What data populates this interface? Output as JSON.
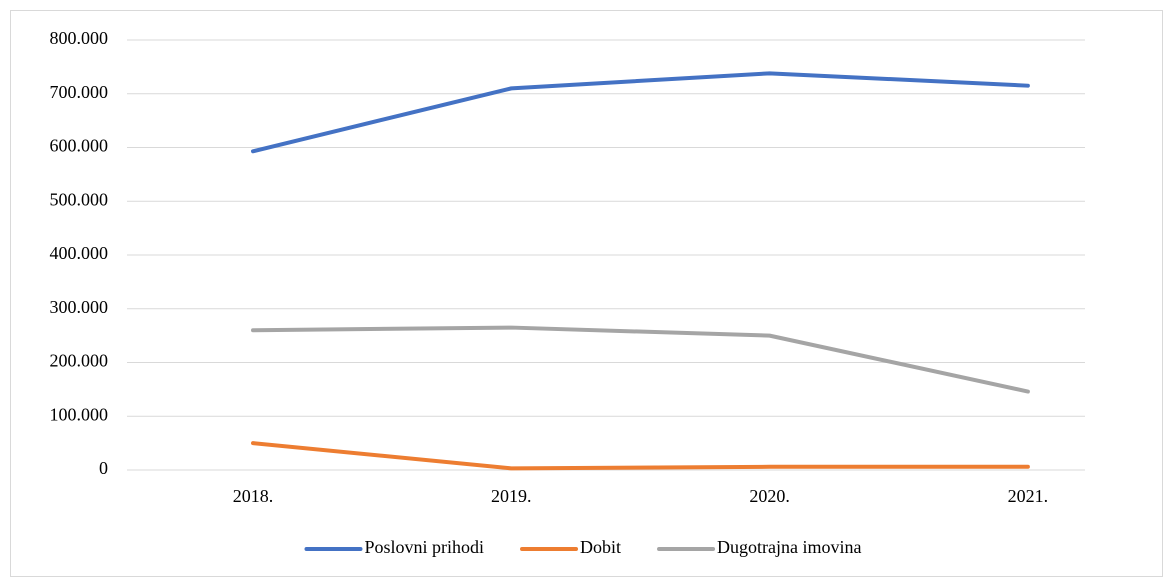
{
  "chart_data": {
    "type": "line",
    "categories": [
      "2018.",
      "2019.",
      "2020.",
      "2021."
    ],
    "series": [
      {
        "name": "Poslovni prihodi",
        "color": "#4472c4",
        "values": [
          593000,
          710000,
          738000,
          715000
        ]
      },
      {
        "name": "Dobit",
        "color": "#ed7d31",
        "values": [
          50000,
          3000,
          6000,
          6000
        ]
      },
      {
        "name": "Dugotrajna imovina",
        "color": "#a5a5a5",
        "values": [
          260000,
          265000,
          250000,
          146000
        ]
      }
    ],
    "ylim": [
      0,
      800000
    ],
    "yticks": [
      0,
      {
        "value": 100000,
        "label": "100.000"
      },
      {
        "value": 200000,
        "label": "200.000"
      },
      {
        "value": 300000,
        "label": "300.000"
      },
      {
        "value": 400000,
        "label": "400.000"
      },
      {
        "value": 500000,
        "label": "500.000"
      },
      {
        "value": 600000,
        "label": "600.000"
      },
      {
        "value": 700000,
        "label": "700.000"
      },
      {
        "value": 800000,
        "label": "800.000"
      }
    ],
    "grid": true,
    "legend": "bottom"
  }
}
